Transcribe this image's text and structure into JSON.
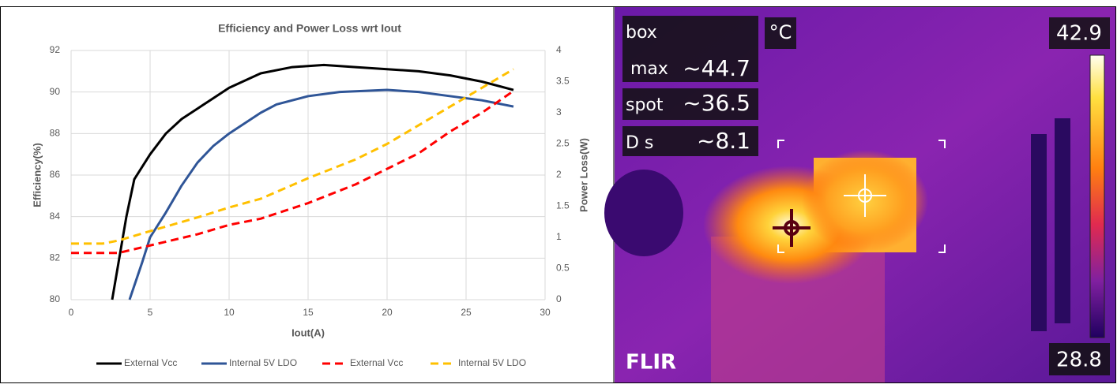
{
  "chart_data": {
    "type": "line",
    "title": "Efficiency and Power Loss wrt Iout",
    "xlabel": "Iout(A)",
    "ylabel": "Efficiency(%)",
    "y2label": "Power Loss(W)",
    "xlim": [
      0,
      30
    ],
    "xticks": [
      0,
      5,
      10,
      15,
      20,
      25,
      30
    ],
    "ylim": [
      80,
      92
    ],
    "yticks": [
      80,
      82,
      84,
      86,
      88,
      90,
      92
    ],
    "y2lim": [
      0,
      4
    ],
    "y2ticks": [
      0,
      0.5,
      1,
      1.5,
      2,
      2.5,
      3,
      3.5,
      4
    ],
    "grid": true,
    "legend": "bottom",
    "series": [
      {
        "name": "External Vcc",
        "color": "#000000",
        "dashed": false,
        "axis": "y",
        "x": [
          2.6,
          3.5,
          4,
          5,
          6,
          7,
          8,
          10,
          12,
          14,
          16,
          18,
          20,
          22,
          24,
          26,
          28
        ],
        "values": [
          80,
          84,
          85.8,
          87,
          88,
          88.7,
          89.2,
          90.2,
          90.9,
          91.2,
          91.3,
          91.2,
          91.1,
          91,
          90.8,
          90.5,
          90.1
        ]
      },
      {
        "name": "Internal 5V LDO",
        "color": "#2f5597",
        "dashed": false,
        "axis": "y",
        "x": [
          3.7,
          4.5,
          5,
          6,
          7,
          8,
          9,
          10,
          12,
          13,
          15,
          17,
          20,
          22,
          24,
          26,
          28
        ],
        "values": [
          80,
          81.8,
          83,
          84.2,
          85.5,
          86.6,
          87.4,
          88,
          89,
          89.4,
          89.8,
          90,
          90.1,
          90,
          89.8,
          89.6,
          89.3
        ]
      },
      {
        "name": "External Vcc",
        "color": "#ff0000",
        "dashed": true,
        "axis": "y2",
        "x": [
          0,
          3,
          5,
          8,
          10,
          12,
          15,
          18,
          20,
          22,
          24,
          26,
          28
        ],
        "values": [
          0.75,
          0.75,
          0.87,
          1.05,
          1.2,
          1.3,
          1.55,
          1.85,
          2.1,
          2.35,
          2.7,
          3,
          3.35
        ]
      },
      {
        "name": "Internal 5V LDO",
        "color": "#ffc000",
        "dashed": true,
        "axis": "y2",
        "x": [
          0,
          2,
          3,
          5,
          8,
          10,
          12,
          15,
          18,
          20,
          22,
          24,
          26,
          28
        ],
        "values": [
          0.9,
          0.9,
          0.95,
          1.1,
          1.32,
          1.48,
          1.62,
          1.95,
          2.25,
          2.5,
          2.8,
          3.1,
          3.4,
          3.7
        ]
      }
    ]
  },
  "thermal_image": {
    "unit": "°C",
    "scale_max": 42.9,
    "scale_min": 28.8,
    "brand": "FLIR",
    "readouts": [
      {
        "label": "box"
      },
      {
        "label": "max",
        "value": "~44.7"
      },
      {
        "label": "spot",
        "value": "~36.5"
      },
      {
        "label": "D s",
        "value": "~8.1"
      }
    ]
  }
}
